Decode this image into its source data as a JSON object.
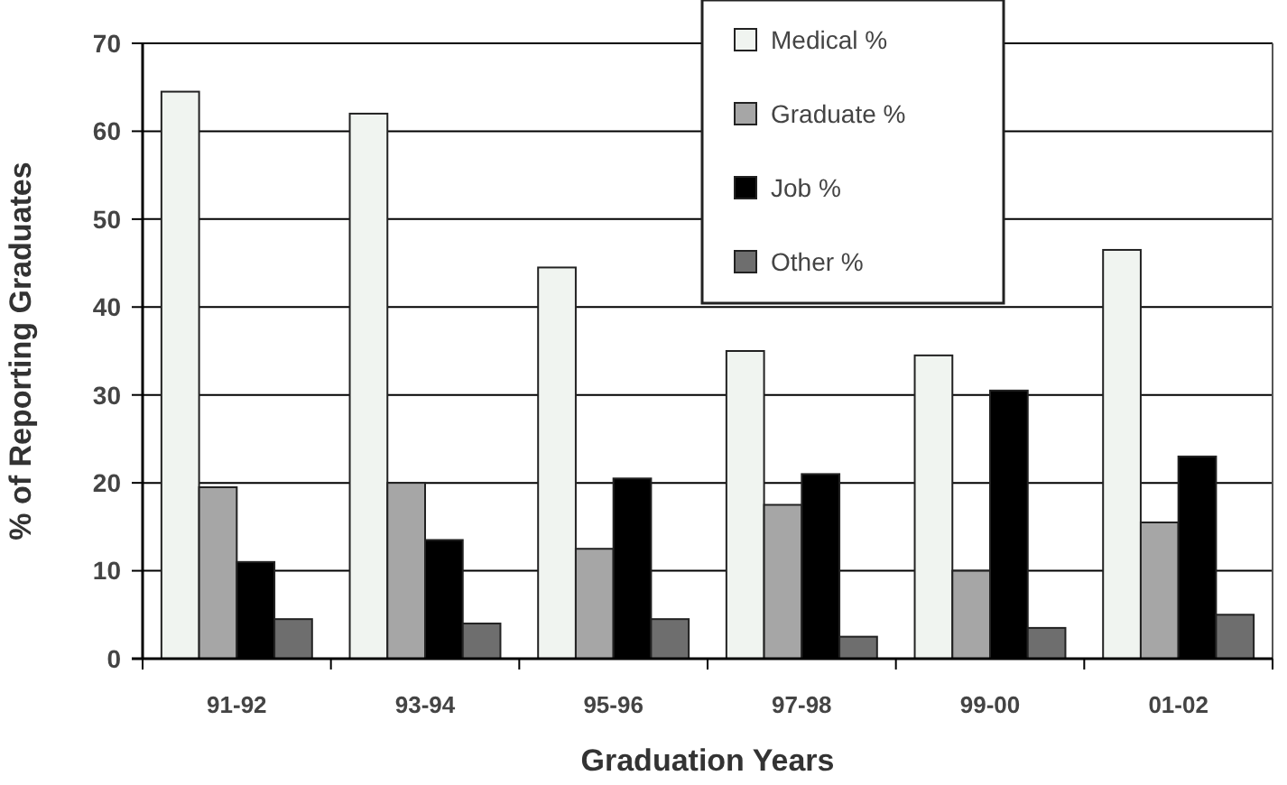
{
  "chart_data": {
    "type": "bar",
    "xlabel": "Graduation Years",
    "ylabel": "% of Reporting Graduates",
    "categories": [
      "91-92",
      "93-94",
      "95-96",
      "97-98",
      "99-00",
      "01-02"
    ],
    "series": [
      {
        "name": "Medical %",
        "color": "#f0f4f0",
        "values": [
          64.5,
          62,
          44.5,
          35,
          34.5,
          46.5
        ]
      },
      {
        "name": "Graduate %",
        "color": "#a6a6a6",
        "values": [
          19.5,
          20,
          12.5,
          17.5,
          10,
          15.5
        ]
      },
      {
        "name": "Job %",
        "color": "#000000",
        "values": [
          11,
          13.5,
          20.5,
          21,
          30.5,
          23
        ]
      },
      {
        "name": "Other %",
        "color": "#6e6e6e",
        "values": [
          4.5,
          4,
          4.5,
          2.5,
          3.5,
          5
        ]
      }
    ],
    "ylim": [
      0,
      70
    ],
    "yticks": [
      0,
      10,
      20,
      30,
      40,
      50,
      60,
      70
    ],
    "grid": "y",
    "legend": "top right"
  }
}
